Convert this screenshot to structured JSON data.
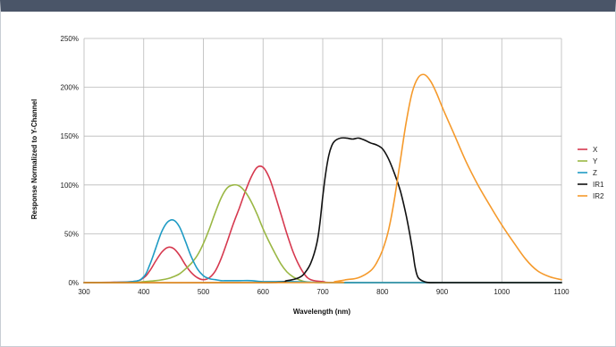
{
  "chart_data": {
    "type": "line",
    "title": "",
    "xlabel": "Wavelength (nm)",
    "ylabel": "Response Normalized to Y-Channel",
    "xlim": [
      300,
      1100
    ],
    "ylim": [
      0,
      250
    ],
    "xticks": [
      300,
      400,
      500,
      600,
      700,
      800,
      900,
      1000,
      1100
    ],
    "yticks": [
      0,
      50,
      100,
      150,
      200,
      250
    ],
    "ytick_labels": [
      "0%",
      "50%",
      "100%",
      "150%",
      "200%",
      "250%"
    ],
    "grid": true,
    "legend_position": "right",
    "series": [
      {
        "name": "X",
        "color": "#d6394f",
        "x": [
          300,
          380,
          400,
          410,
          420,
          430,
          440,
          450,
          460,
          470,
          480,
          490,
          500,
          510,
          520,
          530,
          540,
          550,
          560,
          570,
          580,
          590,
          600,
          610,
          620,
          630,
          640,
          650,
          660,
          670,
          680,
          700,
          750,
          1100
        ],
        "y": [
          0,
          1,
          5,
          12,
          22,
          31,
          36,
          35,
          28,
          18,
          10,
          5,
          3,
          5,
          12,
          25,
          42,
          60,
          76,
          93,
          108,
          118,
          118,
          108,
          90,
          70,
          50,
          32,
          18,
          8,
          3,
          1,
          0,
          0
        ]
      },
      {
        "name": "Y",
        "color": "#9ab744",
        "x": [
          300,
          380,
          400,
          420,
          440,
          450,
          460,
          470,
          480,
          490,
          500,
          510,
          520,
          530,
          540,
          550,
          560,
          570,
          580,
          590,
          600,
          610,
          620,
          630,
          640,
          650,
          660,
          670,
          680,
          700,
          750,
          1100
        ],
        "y": [
          0,
          0,
          1,
          2,
          4,
          6,
          9,
          14,
          20,
          28,
          40,
          55,
          72,
          87,
          97,
          100,
          99,
          93,
          83,
          70,
          55,
          42,
          30,
          19,
          11,
          6,
          3,
          1,
          0.5,
          0,
          0,
          0
        ]
      },
      {
        "name": "Z",
        "color": "#1f9bc4",
        "x": [
          300,
          380,
          400,
          410,
          420,
          430,
          440,
          450,
          460,
          470,
          480,
          490,
          500,
          510,
          520,
          530,
          540,
          560,
          580,
          600,
          650,
          700,
          800,
          1100
        ],
        "y": [
          0,
          1,
          6,
          18,
          35,
          52,
          62,
          64,
          57,
          42,
          26,
          14,
          7,
          4,
          3,
          2,
          2,
          2,
          2,
          1,
          1,
          0,
          0,
          0
        ]
      },
      {
        "name": "IR1",
        "color": "#111111",
        "x": [
          300,
          600,
          640,
          660,
          670,
          680,
          690,
          695,
          700,
          705,
          710,
          715,
          720,
          730,
          740,
          750,
          760,
          770,
          780,
          790,
          800,
          810,
          820,
          830,
          840,
          850,
          855,
          860,
          870,
          880,
          900,
          1100
        ],
        "y": [
          0,
          0,
          2,
          5,
          10,
          20,
          40,
          60,
          88,
          112,
          130,
          140,
          145,
          148,
          148,
          147,
          148,
          146,
          143,
          141,
          137,
          127,
          112,
          94,
          68,
          35,
          15,
          5,
          1,
          0,
          0,
          0
        ]
      },
      {
        "name": "IR2",
        "color": "#f59a2c",
        "x": [
          300,
          700,
          720,
          740,
          760,
          780,
          790,
          800,
          810,
          820,
          830,
          840,
          850,
          860,
          870,
          880,
          890,
          900,
          920,
          940,
          960,
          980,
          1000,
          1020,
          1040,
          1060,
          1080,
          1100
        ],
        "y": [
          0,
          0,
          1,
          3,
          5,
          12,
          20,
          33,
          53,
          85,
          125,
          165,
          195,
          210,
          213,
          207,
          195,
          180,
          152,
          124,
          100,
          79,
          59,
          41,
          24,
          12,
          6,
          3
        ]
      }
    ]
  }
}
